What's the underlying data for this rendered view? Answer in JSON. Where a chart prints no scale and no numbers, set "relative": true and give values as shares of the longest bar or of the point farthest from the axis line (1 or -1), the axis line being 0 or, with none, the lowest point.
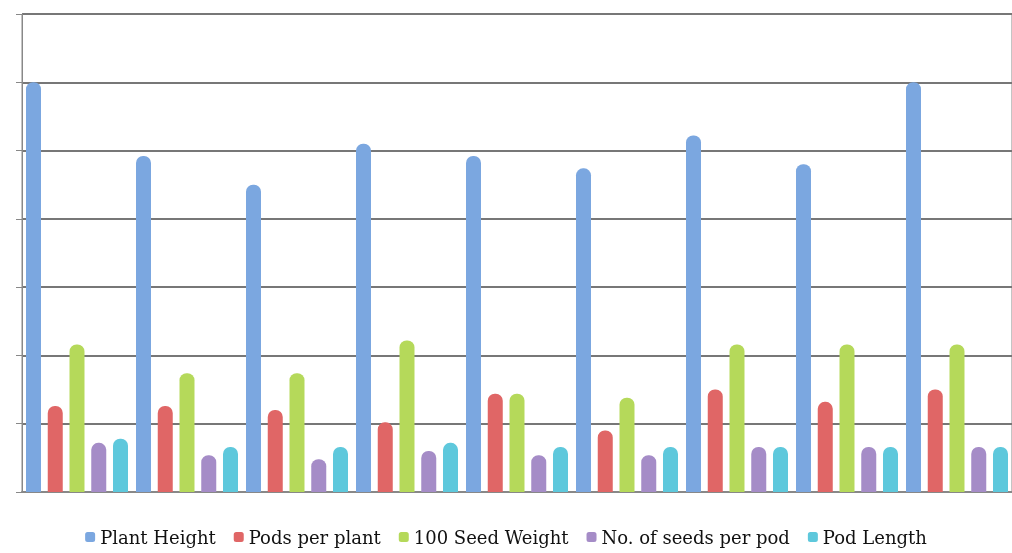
{
  "chart_data": {
    "type": "bar",
    "relative": true,
    "grid": "y",
    "legend": "bottom",
    "categories": [
      null,
      null,
      null,
      null,
      null,
      null,
      null,
      null,
      null
    ],
    "series": [
      {
        "name": "Plant Height",
        "color": "#7ba7e0",
        "values": [
          1,
          0.82,
          0.75,
          0.85,
          0.82,
          0.79,
          0.87,
          0.8,
          1
        ]
      },
      {
        "name": "Pods per plant",
        "color": "#e06666",
        "values": [
          0.21,
          0.21,
          0.2,
          0.17,
          0.24,
          0.15,
          0.25,
          0.22,
          0.25
        ]
      },
      {
        "name": "100 Seed Weight",
        "color": "#b5d95a",
        "values": [
          0.36,
          0.29,
          0.29,
          0.37,
          0.24,
          0.23,
          0.36,
          0.36,
          0.36
        ]
      },
      {
        "name": "No. of seeds per pod",
        "color": "#a58cc7",
        "values": [
          0.12,
          0.09,
          0.08,
          0.1,
          0.09,
          0.09,
          0.11,
          0.11,
          0.11
        ]
      },
      {
        "name": "Pod Length",
        "color": "#5ec8dc",
        "values": [
          0.13,
          0.11,
          0.11,
          0.12,
          0.11,
          0.11,
          0.11,
          0.11,
          0.11
        ]
      }
    ]
  }
}
